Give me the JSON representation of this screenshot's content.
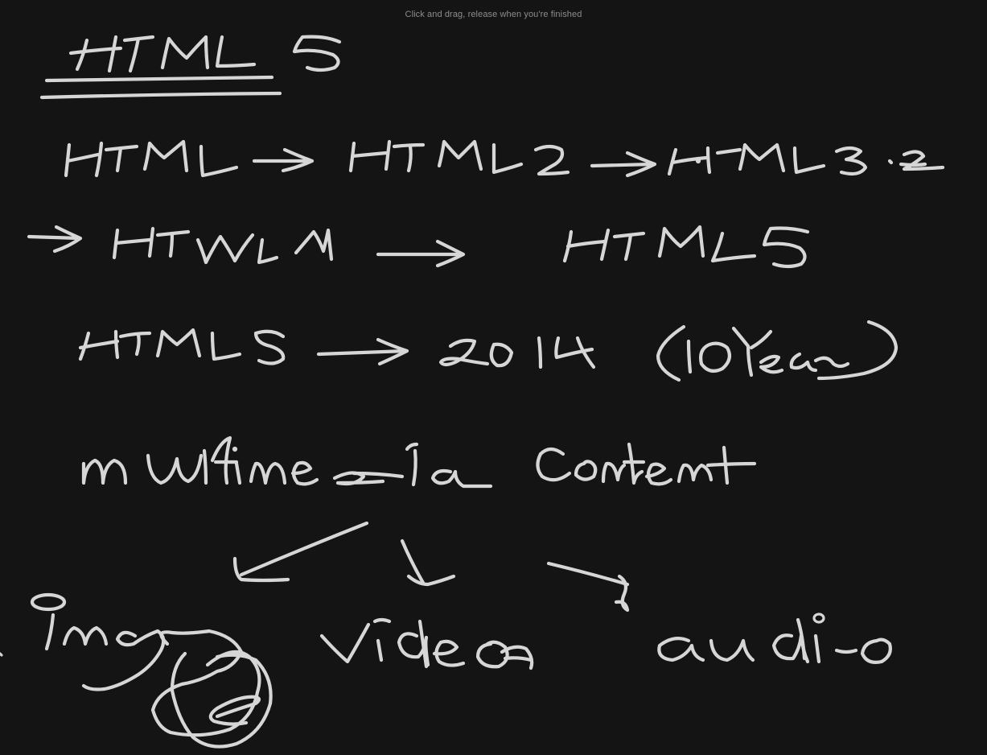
{
  "overlay": {
    "hint": "Click and drag, release when you're finished"
  },
  "canvas": {
    "background": "#141414",
    "ink_color": "#d6d6d6",
    "hint_color": "#8d8d8d"
  }
}
